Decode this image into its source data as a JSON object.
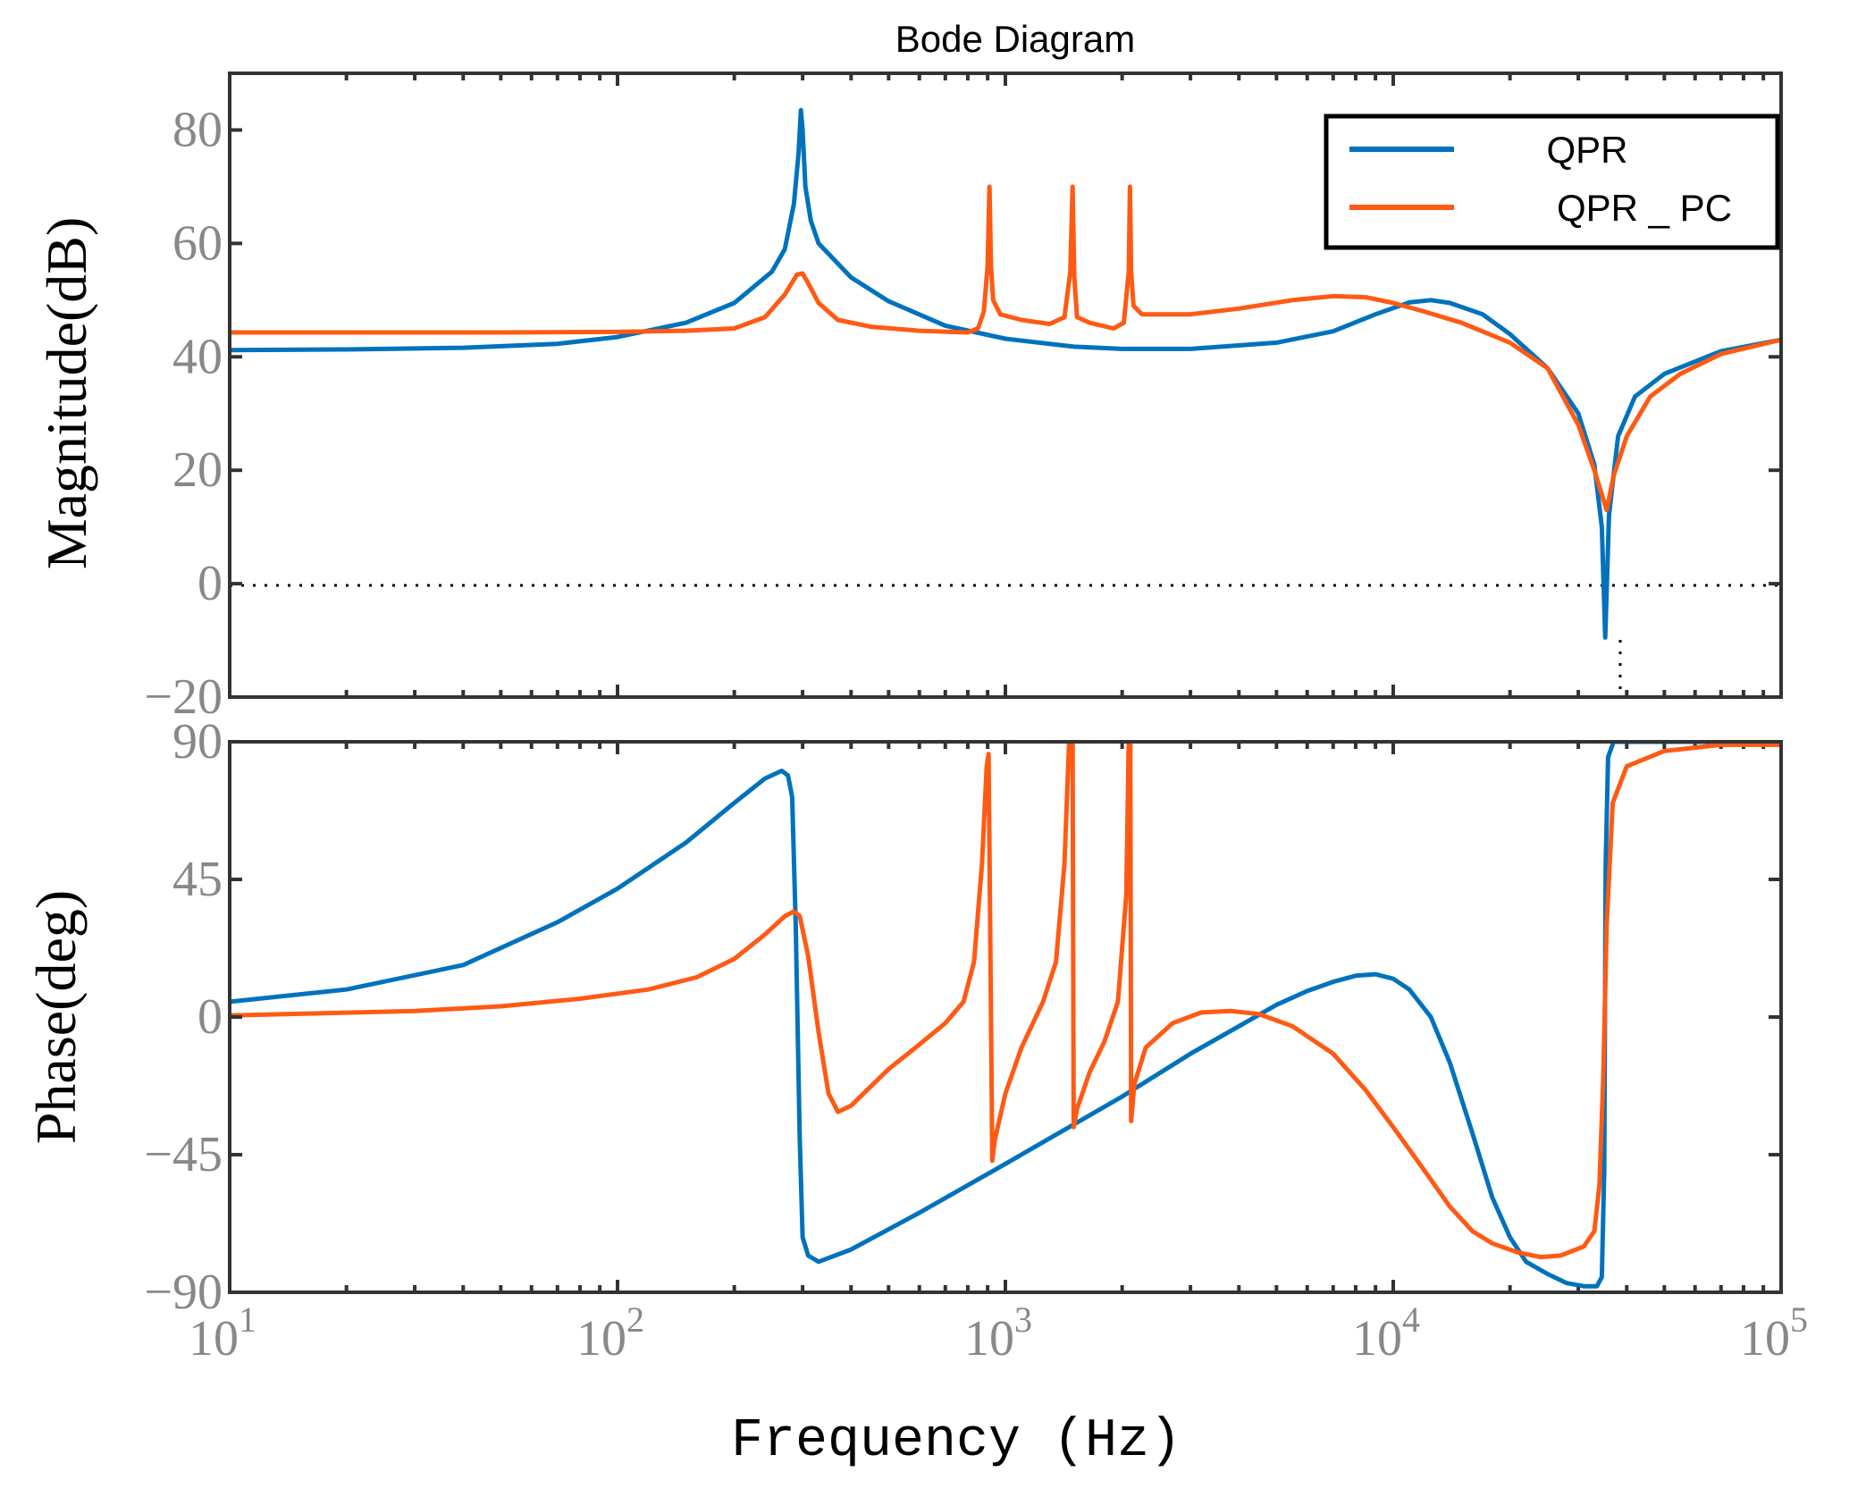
{
  "chart_data": {
    "type": "line",
    "title": "Bode Diagram",
    "xlabel": "Frequency (Hz)",
    "xscale": "log",
    "xlim": [
      10,
      100000
    ],
    "x_tick_labels": [
      {
        "base": "10",
        "exp": "1",
        "value": 10
      },
      {
        "base": "10",
        "exp": "2",
        "value": 100
      },
      {
        "base": "10",
        "exp": "3",
        "value": 1000
      },
      {
        "base": "10",
        "exp": "4",
        "value": 10000
      },
      {
        "base": "10",
        "exp": "5",
        "value": 100000
      }
    ],
    "legend": {
      "position": "top-right",
      "entries": [
        {
          "label": "QPR",
          "color": "#0072BD"
        },
        {
          "label": "QPR _ PC",
          "color": "#FF5A14"
        }
      ]
    },
    "reference_lines": [
      {
        "subplot": "magnitude",
        "y": 0,
        "style": "dotted"
      },
      {
        "subplot": "magnitude",
        "x": 35000,
        "style": "dotted"
      }
    ],
    "subplots": [
      {
        "id": "magnitude",
        "ylabel": "Magnitude(dB)",
        "ylim": [
          -20,
          90
        ],
        "yticks": [
          {
            "value": 80,
            "label": "80"
          },
          {
            "value": 60,
            "label": "60"
          },
          {
            "value": 40,
            "label": "40"
          },
          {
            "value": 20,
            "label": "20"
          },
          {
            "value": 0,
            "label": "0"
          },
          {
            "value": -20,
            "label": "−20"
          }
        ],
        "series": [
          {
            "name": "QPR",
            "color": "#0072BD",
            "points": [
              [
                10,
                41.2
              ],
              [
                20,
                41.3
              ],
              [
                40,
                41.6
              ],
              [
                70,
                42.3
              ],
              [
                100,
                43.5
              ],
              [
                150,
                46
              ],
              [
                200,
                49.5
              ],
              [
                250,
                55
              ],
              [
                270,
                59
              ],
              [
                285,
                67
              ],
              [
                293,
                76
              ],
              [
                297,
                83.5
              ],
              [
                300,
                80
              ],
              [
                305,
                70
              ],
              [
                315,
                64
              ],
              [
                330,
                60
              ],
              [
                400,
                54
              ],
              [
                500,
                49.8
              ],
              [
                700,
                45.5
              ],
              [
                1000,
                43.2
              ],
              [
                1500,
                41.8
              ],
              [
                2000,
                41.4
              ],
              [
                3000,
                41.4
              ],
              [
                5000,
                42.5
              ],
              [
                7000,
                44.5
              ],
              [
                9000,
                47.5
              ],
              [
                11000,
                49.6
              ],
              [
                12500,
                50
              ],
              [
                14000,
                49.5
              ],
              [
                17000,
                47.5
              ],
              [
                20000,
                44
              ],
              [
                25000,
                38
              ],
              [
                30000,
                30
              ],
              [
                33000,
                21
              ],
              [
                34500,
                10
              ],
              [
                35200,
                -9.5
              ],
              [
                36000,
                12
              ],
              [
                38000,
                26
              ],
              [
                42000,
                33
              ],
              [
                50000,
                37
              ],
              [
                70000,
                41
              ],
              [
                100000,
                43
              ]
            ]
          },
          {
            "name": "QPR _ PC",
            "color": "#FF5A14",
            "points": [
              [
                10,
                44.3
              ],
              [
                50,
                44.3
              ],
              [
                100,
                44.4
              ],
              [
                150,
                44.6
              ],
              [
                200,
                45
              ],
              [
                240,
                47
              ],
              [
                270,
                51
              ],
              [
                290,
                54.5
              ],
              [
                300,
                54.7
              ],
              [
                310,
                53
              ],
              [
                330,
                49.5
              ],
              [
                370,
                46.5
              ],
              [
                450,
                45.3
              ],
              [
                600,
                44.6
              ],
              [
                800,
                44.3
              ],
              [
                850,
                45
              ],
              [
                880,
                48
              ],
              [
                900,
                56
              ],
              [
                910,
                70
              ],
              [
                918,
                56
              ],
              [
                930,
                50
              ],
              [
                970,
                47.5
              ],
              [
                1100,
                46.5
              ],
              [
                1300,
                45.8
              ],
              [
                1420,
                47
              ],
              [
                1470,
                55
              ],
              [
                1490,
                70
              ],
              [
                1505,
                54
              ],
              [
                1530,
                47
              ],
              [
                1650,
                46
              ],
              [
                1900,
                45
              ],
              [
                2020,
                46
              ],
              [
                2080,
                55
              ],
              [
                2095,
                70
              ],
              [
                2110,
                55
              ],
              [
                2140,
                49
              ],
              [
                2250,
                47.5
              ],
              [
                3000,
                47.5
              ],
              [
                4000,
                48.5
              ],
              [
                5500,
                50
              ],
              [
                7000,
                50.7
              ],
              [
                8500,
                50.5
              ],
              [
                10000,
                49.5
              ],
              [
                12000,
                48
              ],
              [
                15000,
                46
              ],
              [
                20000,
                42.5
              ],
              [
                25000,
                38
              ],
              [
                30000,
                28
              ],
              [
                33000,
                20
              ],
              [
                35500,
                13
              ],
              [
                37000,
                19
              ],
              [
                40000,
                26
              ],
              [
                46000,
                33
              ],
              [
                55000,
                37
              ],
              [
                70000,
                40.5
              ],
              [
                100000,
                43
              ]
            ]
          }
        ]
      },
      {
        "id": "phase",
        "ylabel": "Phase(deg)",
        "ylim": [
          -90,
          90
        ],
        "yticks": [
          {
            "value": 90,
            "label": "90"
          },
          {
            "value": 45,
            "label": "45"
          },
          {
            "value": 0,
            "label": "0"
          },
          {
            "value": -45,
            "label": "−45"
          },
          {
            "value": -90,
            "label": "−90"
          }
        ],
        "series": [
          {
            "name": "QPR",
            "color": "#0072BD",
            "points": [
              [
                10,
                5
              ],
              [
                20,
                9
              ],
              [
                40,
                17
              ],
              [
                70,
                31
              ],
              [
                100,
                42
              ],
              [
                150,
                57
              ],
              [
                200,
                70
              ],
              [
                240,
                78
              ],
              [
                265,
                80.5
              ],
              [
                275,
                79
              ],
              [
                282,
                72
              ],
              [
                288,
                30
              ],
              [
                295,
                -40
              ],
              [
                300,
                -72
              ],
              [
                310,
                -78
              ],
              [
                330,
                -80
              ],
              [
                400,
                -76
              ],
              [
                600,
                -64
              ],
              [
                1000,
                -48
              ],
              [
                2000,
                -26
              ],
              [
                3000,
                -12
              ],
              [
                4000,
                -3
              ],
              [
                5000,
                4
              ],
              [
                6000,
                8.5
              ],
              [
                7000,
                11.5
              ],
              [
                8000,
                13.5
              ],
              [
                9000,
                14
              ],
              [
                10000,
                12.5
              ],
              [
                11000,
                9
              ],
              [
                12500,
                0
              ],
              [
                14000,
                -15
              ],
              [
                16000,
                -38
              ],
              [
                18000,
                -59
              ],
              [
                20000,
                -72
              ],
              [
                22000,
                -80
              ],
              [
                25000,
                -84
              ],
              [
                28000,
                -87
              ],
              [
                31000,
                -88
              ],
              [
                33500,
                -88
              ],
              [
                34500,
                -85
              ],
              [
                35000,
                -50
              ],
              [
                35300,
                50
              ],
              [
                35800,
                85
              ],
              [
                37000,
                90
              ],
              [
                50000,
                90
              ],
              [
                100000,
                90
              ]
            ]
          },
          {
            "name": "QPR _ PC",
            "color": "#FF5A14",
            "points": [
              [
                10,
                0.5
              ],
              [
                30,
                2
              ],
              [
                50,
                3.5
              ],
              [
                80,
                6
              ],
              [
                120,
                9
              ],
              [
                160,
                13
              ],
              [
                200,
                19
              ],
              [
                240,
                27
              ],
              [
                270,
                33
              ],
              [
                285,
                34.5
              ],
              [
                295,
                33
              ],
              [
                310,
                20
              ],
              [
                330,
                -5
              ],
              [
                350,
                -25
              ],
              [
                370,
                -31
              ],
              [
                400,
                -29
              ],
              [
                500,
                -17
              ],
              [
                600,
                -9
              ],
              [
                700,
                -2
              ],
              [
                780,
                5
              ],
              [
                830,
                18
              ],
              [
                870,
                50
              ],
              [
                895,
                82
              ],
              [
                905,
                86
              ],
              [
                915,
                20
              ],
              [
                925,
                -47
              ],
              [
                940,
                -40
              ],
              [
                1000,
                -25
              ],
              [
                1100,
                -10
              ],
              [
                1250,
                5
              ],
              [
                1350,
                18
              ],
              [
                1420,
                50
              ],
              [
                1460,
                90
              ],
              [
                1490,
                90
              ],
              [
                1500,
                -36
              ],
              [
                1530,
                -30
              ],
              [
                1650,
                -18
              ],
              [
                1800,
                -8
              ],
              [
                1950,
                5
              ],
              [
                2050,
                40
              ],
              [
                2080,
                90
              ],
              [
                2100,
                90
              ],
              [
                2110,
                -34
              ],
              [
                2150,
                -22
              ],
              [
                2300,
                -10
              ],
              [
                2700,
                -2
              ],
              [
                3200,
                1.5
              ],
              [
                3800,
                2
              ],
              [
                4500,
                1
              ],
              [
                5500,
                -3
              ],
              [
                7000,
                -12
              ],
              [
                8500,
                -24
              ],
              [
                10000,
                -36
              ],
              [
                12000,
                -50
              ],
              [
                14000,
                -62
              ],
              [
                16000,
                -70
              ],
              [
                18000,
                -74
              ],
              [
                21000,
                -77
              ],
              [
                24000,
                -78.5
              ],
              [
                27000,
                -78
              ],
              [
                31000,
                -75
              ],
              [
                33000,
                -70
              ],
              [
                34000,
                -55
              ],
              [
                34800,
                -20
              ],
              [
                35500,
                30
              ],
              [
                36800,
                70
              ],
              [
                40000,
                82
              ],
              [
                50000,
                87
              ],
              [
                70000,
                89
              ],
              [
                100000,
                89
              ]
            ]
          }
        ]
      }
    ]
  }
}
